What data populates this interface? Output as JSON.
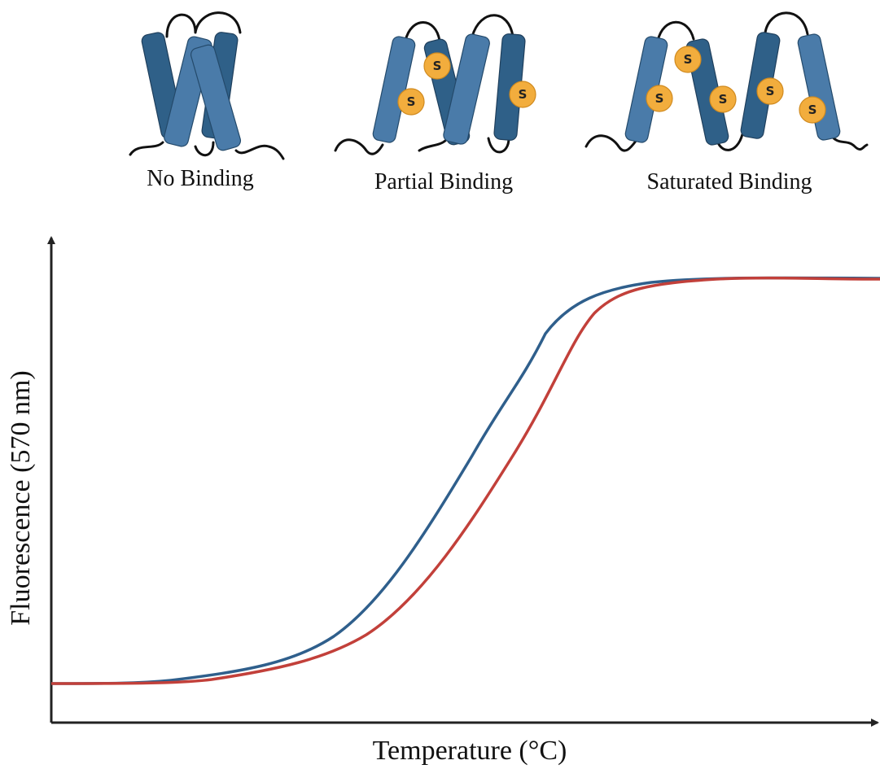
{
  "panels": [
    {
      "label": "No Binding"
    },
    {
      "label": "Partial Binding"
    },
    {
      "label": "Saturated Binding"
    }
  ],
  "ligand_label": "S",
  "plot": {
    "x_label": "Temperature (°C)",
    "y_label": "Fluorescence (570 nm)"
  }
}
